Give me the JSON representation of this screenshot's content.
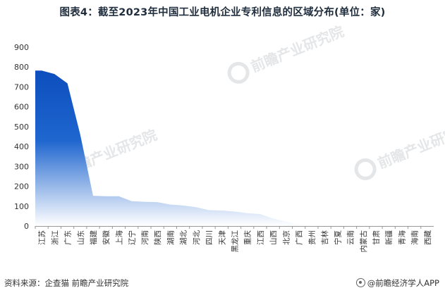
{
  "title": "图表4：截至2023年中国工业电机企业专利信息的区域分布(单位：家)",
  "source": "资料来源：企查猫 前瞻产业研究院",
  "brand": "@前瞻经济学人APP",
  "watermark": "前瞻产业研究院",
  "colors": {
    "area_top": "#0d4fbf",
    "area_bottom": "#ffffff",
    "axis": "#999999"
  },
  "chart_data": {
    "type": "area",
    "title": "图表4：截至2023年中国工业电机企业专利信息的区域分布(单位：家)",
    "xlabel": "",
    "ylabel": "",
    "ylim": [
      0,
      900
    ],
    "yticks": [
      0,
      100,
      200,
      300,
      400,
      500,
      600,
      700,
      800,
      900
    ],
    "grid": false,
    "categories": [
      "江苏",
      "浙江",
      "广东",
      "山东",
      "福建",
      "安徽",
      "上海",
      "辽宁",
      "河南",
      "陕西",
      "湖南",
      "湖北",
      "河北",
      "四川",
      "天津",
      "黑龙江",
      "重庆",
      "江西",
      "山西",
      "北京",
      "广西",
      "贵州",
      "吉林",
      "宁夏",
      "云南",
      "内蒙古",
      "甘肃",
      "新疆",
      "青海",
      "海南",
      "西藏"
    ],
    "series": [
      {
        "values": [
          782,
          765,
          718,
          460,
          152,
          150,
          150,
          125,
          122,
          120,
          108,
          103,
          95,
          80,
          78,
          73,
          65,
          60,
          38,
          22,
          8,
          4,
          4,
          3,
          3,
          2,
          2,
          1,
          1,
          1,
          0
        ]
      }
    ]
  }
}
